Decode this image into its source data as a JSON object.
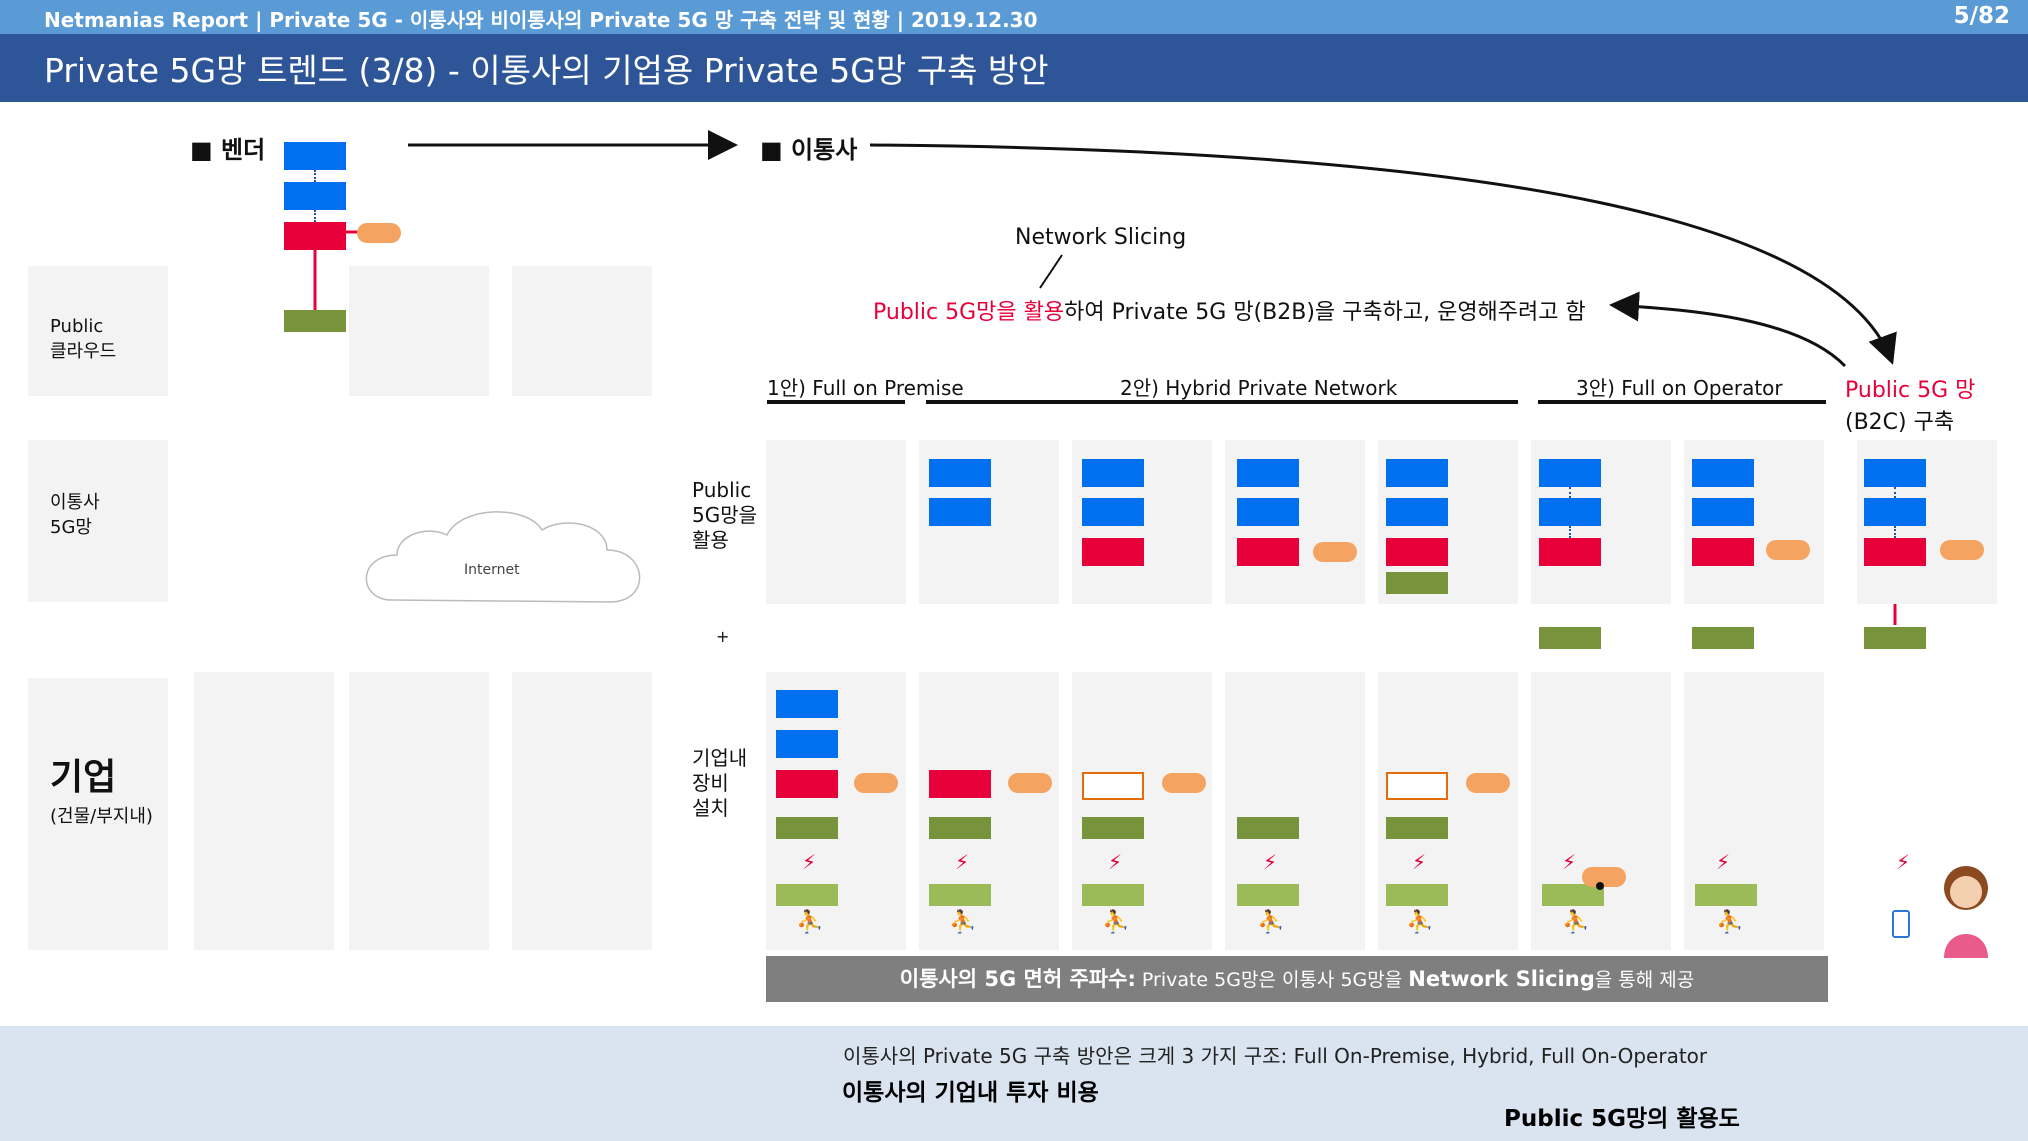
{
  "header": {
    "report": "Netmanias Report | Private 5G - 이통사와 비이통사의 Private 5G 망 구축 전략 및 현황  | 2019.12.30",
    "page": "5/82",
    "title": "Private 5G망 트렌드 (3/8) - 이통사의 기업용 Private 5G망 구축 방안"
  },
  "legend": {
    "vendor": "■ 벤더",
    "operator": "■ 이통사"
  },
  "rows": {
    "public_cloud": "Public\n클라우드",
    "operator_5g": "이통사\n5G망",
    "enterprise": "기업",
    "enterprise_sub": "(건물/부지내)"
  },
  "cloud_label": "Internet",
  "network_slicing": "Network Slicing",
  "slicing_text_red": "Public 5G망을 활용",
  "slicing_text_black": "하여 Private 5G 망(B2B)을 구축하고, 운영해주려고 함",
  "sections": {
    "s1": "1안) Full on Premise",
    "s2": "2안) Hybrid Private Network",
    "s3": "3안) Full on Operator",
    "s4_red": "Public 5G 망",
    "s4_black": "(B2C) 구축"
  },
  "side_labels": {
    "public_use": "Public\n5G망을\n활용",
    "plus": "+",
    "onsite": "기업내\n장비\n설치"
  },
  "license_bar": {
    "bold1": "이통사의 5G 면허 주파수:",
    "normal1": " Private 5G망은 이통사 5G망을 ",
    "bold2": "Network Slicing",
    "normal2": "을 통해 제공"
  },
  "bottom": {
    "summary": "이통사의 Private 5G 구축 방안은 크게 3 가지 구조: Full On-Premise, Hybrid, Full On-Operator",
    "left_arrow": "이통사의 기업내 투자 비용",
    "right_arrow": "Public 5G망의 활용도"
  },
  "colors": {
    "blue": "#0070f0",
    "red": "#e8003a",
    "green": "#77933c",
    "light_green": "#9bbb59",
    "orange": "#f4a460",
    "header_blue": "#2e5597",
    "top_blue": "#5b9bd5"
  }
}
